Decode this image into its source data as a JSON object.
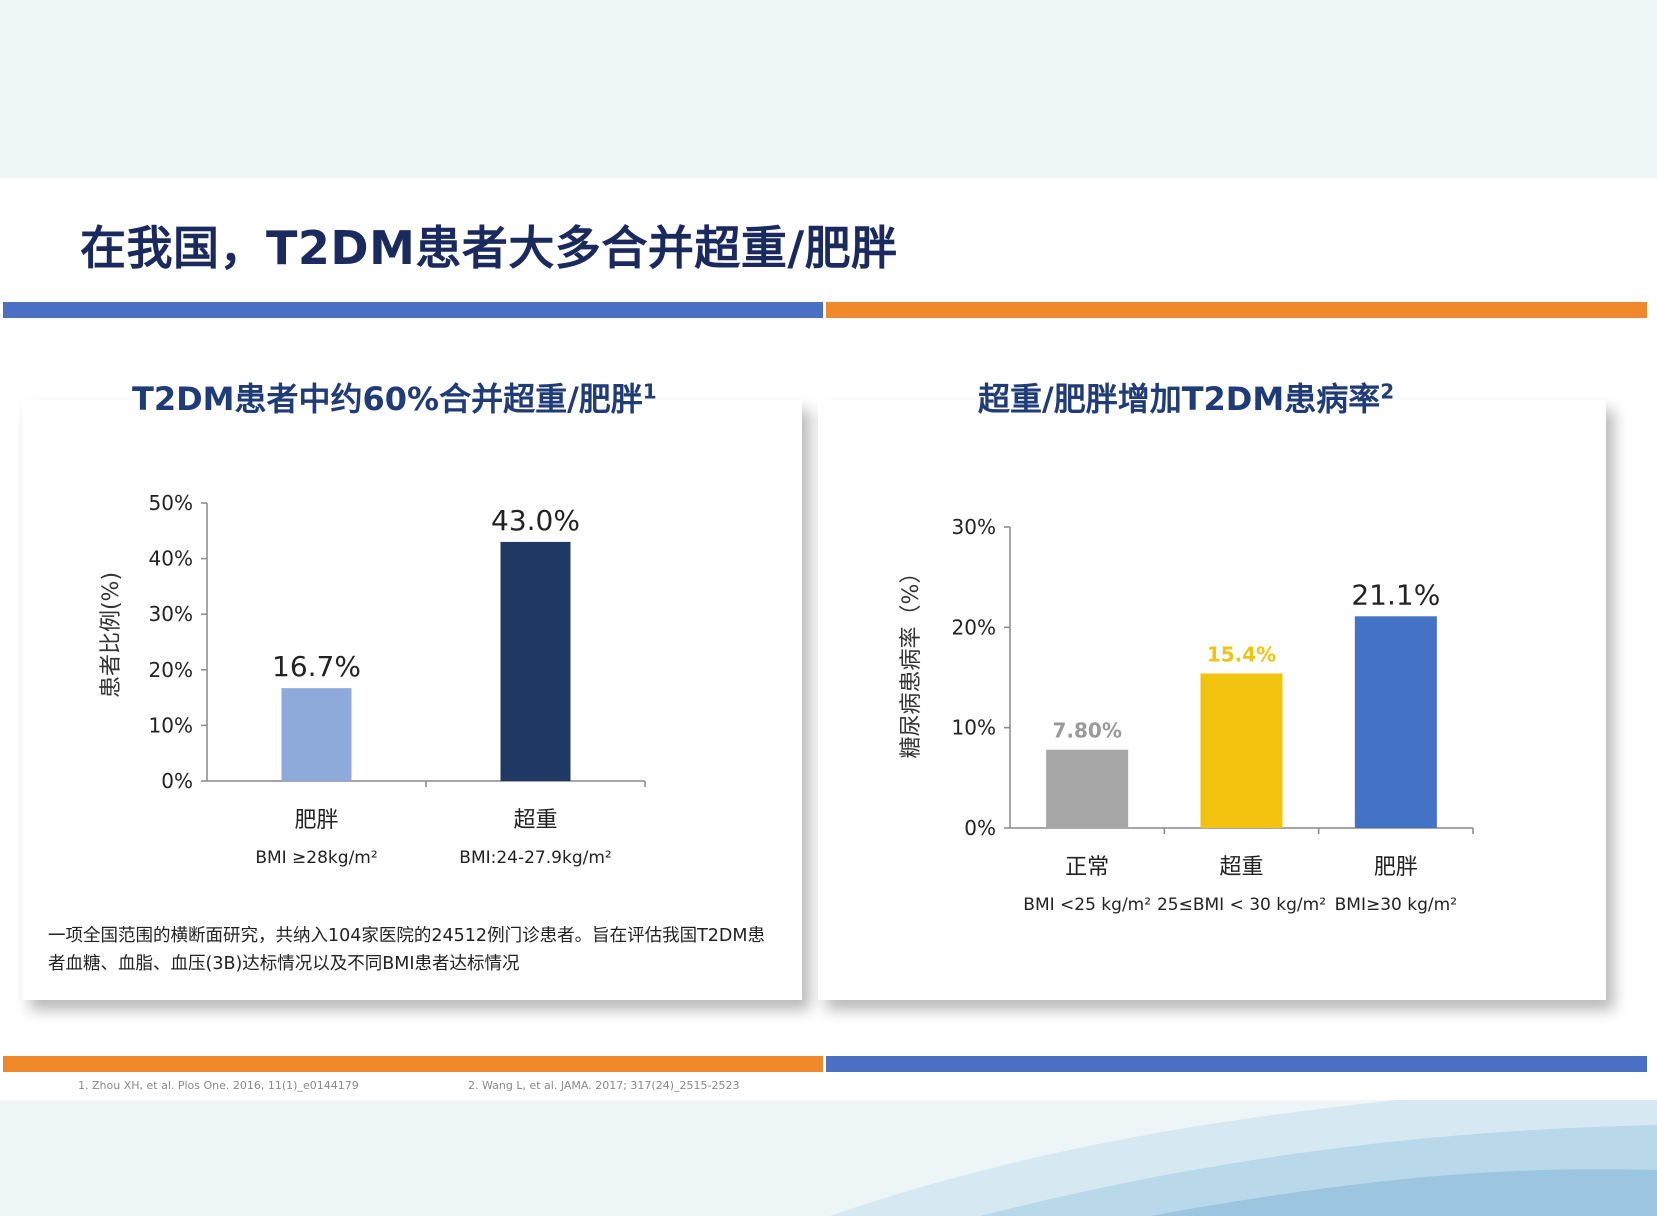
{
  "slide": {
    "title": "在我国，T2DM患者大多合并超重/肥胖",
    "colors": {
      "blue": "#4a6fc3",
      "orange": "#f0882c",
      "title": "#1a2a5e"
    }
  },
  "left_panel": {
    "title": "T2DM患者中约60%合并超重/肥胖",
    "title_sup": "1",
    "description": "一项全国范围的横断面研究，共纳入104家医院的24512例门诊患者。旨在评估我国T2DM患者血糖、血脂、血压(3B)达标情况以及不同BMI患者达标情况"
  },
  "right_panel": {
    "title": "超重/肥胖增加T2DM患病率",
    "title_sup": "2"
  },
  "references": {
    "ref1": "1.   Zhou XH, et al. Plos One. 2016, 11(1)_e0144179",
    "ref2": "2. Wang L, et al. JAMA. 2017; 317(24)_2515-2523"
  },
  "chart_data": [
    {
      "type": "bar",
      "ylabel": "患者比例(%)",
      "ylim": [
        0,
        50
      ],
      "yticks": [
        "0%",
        "10%",
        "20%",
        "30%",
        "40%",
        "50%"
      ],
      "grid": false,
      "categories": [
        "肥胖",
        "超重"
      ],
      "sublabels": [
        "BMI ≥28kg/m²",
        "BMI:24-27.9kg/m²"
      ],
      "values": [
        16.7,
        43.0
      ],
      "data_labels": [
        "16.7%",
        "43.0%"
      ],
      "colors": [
        "#8eaadb",
        "#1f3864"
      ]
    },
    {
      "type": "bar",
      "ylabel": "糖尿病患病率（%）",
      "ylim": [
        0,
        30
      ],
      "yticks": [
        "0%",
        "10%",
        "20%",
        "30%"
      ],
      "grid": false,
      "categories": [
        "正常",
        "超重",
        "肥胖"
      ],
      "sublabels": [
        "BMI <25 kg/m²",
        "25≤BMI < 30 kg/m²",
        "BMI≥30 kg/m²"
      ],
      "values": [
        7.8,
        15.4,
        21.1
      ],
      "data_labels": [
        "7.80%",
        "15.4%",
        "21.1%"
      ],
      "colors": [
        "#a6a6a6",
        "#f2c30f",
        "#4472c4"
      ]
    }
  ]
}
